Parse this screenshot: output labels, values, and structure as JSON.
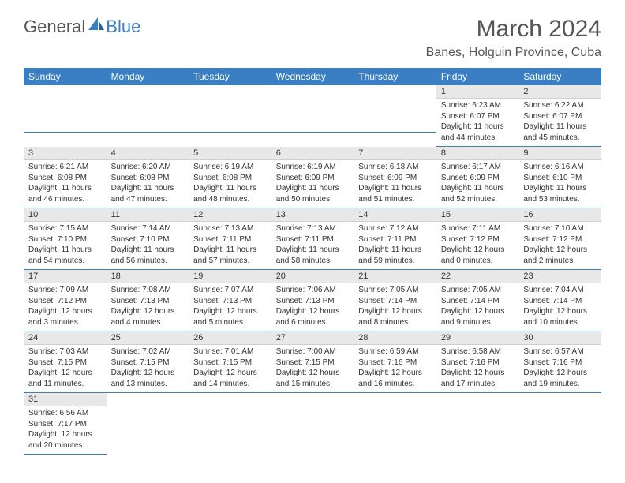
{
  "brand": {
    "word1": "General",
    "word2": "Blue"
  },
  "title": "March 2024",
  "location": "Banes, Holguin Province, Cuba",
  "colors": {
    "header_bg": "#3a7fc4",
    "header_text": "#ffffff",
    "daynum_bg": "#e8e8e8",
    "text": "#333333",
    "rule": "#3a7fc4"
  },
  "day_headers": [
    "Sunday",
    "Monday",
    "Tuesday",
    "Wednesday",
    "Thursday",
    "Friday",
    "Saturday"
  ],
  "weeks": [
    [
      null,
      null,
      null,
      null,
      null,
      {
        "n": "1",
        "sr": "Sunrise: 6:23 AM",
        "ss": "Sunset: 6:07 PM",
        "dl": "Daylight: 11 hours and 44 minutes."
      },
      {
        "n": "2",
        "sr": "Sunrise: 6:22 AM",
        "ss": "Sunset: 6:07 PM",
        "dl": "Daylight: 11 hours and 45 minutes."
      }
    ],
    [
      {
        "n": "3",
        "sr": "Sunrise: 6:21 AM",
        "ss": "Sunset: 6:08 PM",
        "dl": "Daylight: 11 hours and 46 minutes."
      },
      {
        "n": "4",
        "sr": "Sunrise: 6:20 AM",
        "ss": "Sunset: 6:08 PM",
        "dl": "Daylight: 11 hours and 47 minutes."
      },
      {
        "n": "5",
        "sr": "Sunrise: 6:19 AM",
        "ss": "Sunset: 6:08 PM",
        "dl": "Daylight: 11 hours and 48 minutes."
      },
      {
        "n": "6",
        "sr": "Sunrise: 6:19 AM",
        "ss": "Sunset: 6:09 PM",
        "dl": "Daylight: 11 hours and 50 minutes."
      },
      {
        "n": "7",
        "sr": "Sunrise: 6:18 AM",
        "ss": "Sunset: 6:09 PM",
        "dl": "Daylight: 11 hours and 51 minutes."
      },
      {
        "n": "8",
        "sr": "Sunrise: 6:17 AM",
        "ss": "Sunset: 6:09 PM",
        "dl": "Daylight: 11 hours and 52 minutes."
      },
      {
        "n": "9",
        "sr": "Sunrise: 6:16 AM",
        "ss": "Sunset: 6:10 PM",
        "dl": "Daylight: 11 hours and 53 minutes."
      }
    ],
    [
      {
        "n": "10",
        "sr": "Sunrise: 7:15 AM",
        "ss": "Sunset: 7:10 PM",
        "dl": "Daylight: 11 hours and 54 minutes."
      },
      {
        "n": "11",
        "sr": "Sunrise: 7:14 AM",
        "ss": "Sunset: 7:10 PM",
        "dl": "Daylight: 11 hours and 56 minutes."
      },
      {
        "n": "12",
        "sr": "Sunrise: 7:13 AM",
        "ss": "Sunset: 7:11 PM",
        "dl": "Daylight: 11 hours and 57 minutes."
      },
      {
        "n": "13",
        "sr": "Sunrise: 7:13 AM",
        "ss": "Sunset: 7:11 PM",
        "dl": "Daylight: 11 hours and 58 minutes."
      },
      {
        "n": "14",
        "sr": "Sunrise: 7:12 AM",
        "ss": "Sunset: 7:11 PM",
        "dl": "Daylight: 11 hours and 59 minutes."
      },
      {
        "n": "15",
        "sr": "Sunrise: 7:11 AM",
        "ss": "Sunset: 7:12 PM",
        "dl": "Daylight: 12 hours and 0 minutes."
      },
      {
        "n": "16",
        "sr": "Sunrise: 7:10 AM",
        "ss": "Sunset: 7:12 PM",
        "dl": "Daylight: 12 hours and 2 minutes."
      }
    ],
    [
      {
        "n": "17",
        "sr": "Sunrise: 7:09 AM",
        "ss": "Sunset: 7:12 PM",
        "dl": "Daylight: 12 hours and 3 minutes."
      },
      {
        "n": "18",
        "sr": "Sunrise: 7:08 AM",
        "ss": "Sunset: 7:13 PM",
        "dl": "Daylight: 12 hours and 4 minutes."
      },
      {
        "n": "19",
        "sr": "Sunrise: 7:07 AM",
        "ss": "Sunset: 7:13 PM",
        "dl": "Daylight: 12 hours and 5 minutes."
      },
      {
        "n": "20",
        "sr": "Sunrise: 7:06 AM",
        "ss": "Sunset: 7:13 PM",
        "dl": "Daylight: 12 hours and 6 minutes."
      },
      {
        "n": "21",
        "sr": "Sunrise: 7:05 AM",
        "ss": "Sunset: 7:14 PM",
        "dl": "Daylight: 12 hours and 8 minutes."
      },
      {
        "n": "22",
        "sr": "Sunrise: 7:05 AM",
        "ss": "Sunset: 7:14 PM",
        "dl": "Daylight: 12 hours and 9 minutes."
      },
      {
        "n": "23",
        "sr": "Sunrise: 7:04 AM",
        "ss": "Sunset: 7:14 PM",
        "dl": "Daylight: 12 hours and 10 minutes."
      }
    ],
    [
      {
        "n": "24",
        "sr": "Sunrise: 7:03 AM",
        "ss": "Sunset: 7:15 PM",
        "dl": "Daylight: 12 hours and 11 minutes."
      },
      {
        "n": "25",
        "sr": "Sunrise: 7:02 AM",
        "ss": "Sunset: 7:15 PM",
        "dl": "Daylight: 12 hours and 13 minutes."
      },
      {
        "n": "26",
        "sr": "Sunrise: 7:01 AM",
        "ss": "Sunset: 7:15 PM",
        "dl": "Daylight: 12 hours and 14 minutes."
      },
      {
        "n": "27",
        "sr": "Sunrise: 7:00 AM",
        "ss": "Sunset: 7:15 PM",
        "dl": "Daylight: 12 hours and 15 minutes."
      },
      {
        "n": "28",
        "sr": "Sunrise: 6:59 AM",
        "ss": "Sunset: 7:16 PM",
        "dl": "Daylight: 12 hours and 16 minutes."
      },
      {
        "n": "29",
        "sr": "Sunrise: 6:58 AM",
        "ss": "Sunset: 7:16 PM",
        "dl": "Daylight: 12 hours and 17 minutes."
      },
      {
        "n": "30",
        "sr": "Sunrise: 6:57 AM",
        "ss": "Sunset: 7:16 PM",
        "dl": "Daylight: 12 hours and 19 minutes."
      }
    ],
    [
      {
        "n": "31",
        "sr": "Sunrise: 6:56 AM",
        "ss": "Sunset: 7:17 PM",
        "dl": "Daylight: 12 hours and 20 minutes."
      },
      null,
      null,
      null,
      null,
      null,
      null
    ]
  ]
}
